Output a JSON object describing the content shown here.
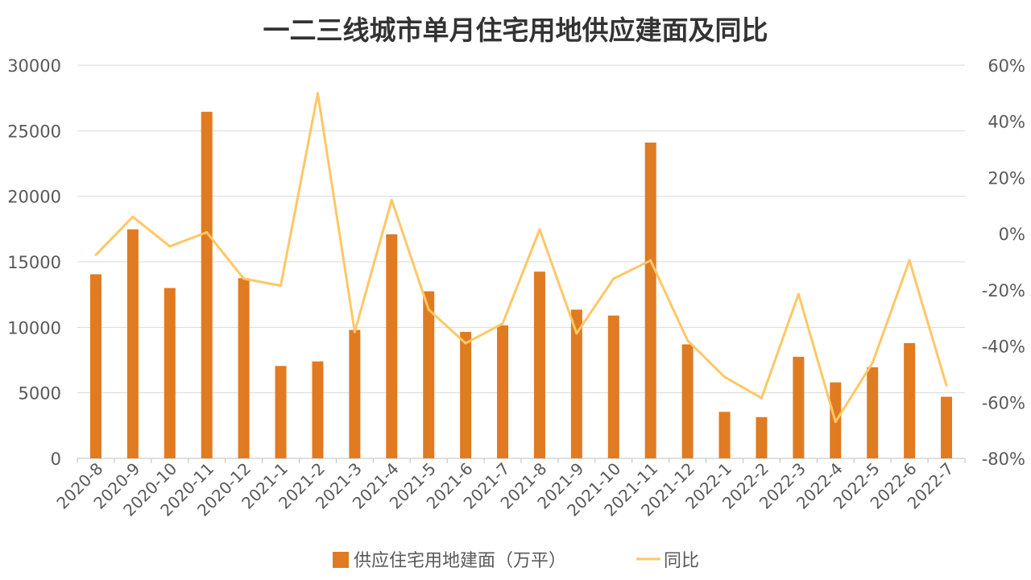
{
  "chart_data": {
    "type": "bar",
    "title": "一二三线城市单月住宅用地供应建面及同比",
    "categories": [
      "2020-8",
      "2020-9",
      "2020-10",
      "2020-11",
      "2020-12",
      "2021-1",
      "2021-2",
      "2021-3",
      "2021-4",
      "2021-5",
      "2021-6",
      "2021-7",
      "2021-8",
      "2021-9",
      "2021-10",
      "2021-11",
      "2021-12",
      "2022-1",
      "2022-2",
      "2022-3",
      "2022-4",
      "2022-5",
      "2022-6",
      "2022-7"
    ],
    "series": [
      {
        "name": "供应住宅用地建面（万平）",
        "type": "bar",
        "axis": "left",
        "color": "#E07B22",
        "values": [
          14050,
          17480,
          13000,
          26450,
          13750,
          7050,
          7400,
          9800,
          17100,
          12750,
          9650,
          10150,
          14250,
          11350,
          10900,
          24100,
          8700,
          3550,
          3150,
          7750,
          5800,
          6950,
          8800,
          4700
        ]
      },
      {
        "name": "同比",
        "type": "line",
        "axis": "right",
        "color": "#FFC766",
        "values": [
          -7.5,
          6,
          -4.5,
          0.5,
          -16,
          -18.5,
          50,
          -35,
          12,
          -27,
          -39,
          -32,
          1.5,
          -35.5,
          -16,
          -9.5,
          -38,
          -51,
          -58.5,
          -21.5,
          -67,
          -46,
          -9.5,
          -54
        ]
      }
    ],
    "y_left": {
      "min": 0,
      "max": 30000,
      "ticks": [
        "0",
        "5000",
        "10000",
        "15000",
        "20000",
        "25000",
        "30000"
      ]
    },
    "y_right": {
      "min": -80,
      "max": 60,
      "ticks": [
        "-80%",
        "-60%",
        "-40%",
        "-20%",
        "0%",
        "20%",
        "40%",
        "60%"
      ]
    },
    "grid": true,
    "legend_position": "bottom"
  }
}
